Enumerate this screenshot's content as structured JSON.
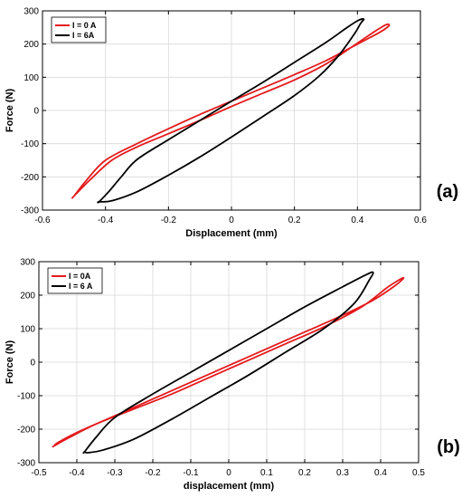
{
  "chart_data": [
    {
      "type": "line",
      "panel_label": "(a)",
      "xlabel": "Displacement (mm)",
      "ylabel": "Force (N)",
      "xlim": [
        -0.6,
        0.6
      ],
      "ylim": [
        -300,
        300
      ],
      "xticks": [
        "-0.6",
        "-0.4",
        "-0.2",
        "0",
        "0.2",
        "0.4",
        "0.6"
      ],
      "yticks": [
        "300",
        "200",
        "100",
        "0",
        "-100",
        "-200",
        "-300"
      ],
      "grid": true,
      "legend_position": "top-left",
      "series": [
        {
          "name": "I = 0 A",
          "color": "#e41a1c",
          "x": [
            -0.5,
            -0.45,
            -0.38,
            -0.3,
            -0.2,
            -0.1,
            0.0,
            0.1,
            0.2,
            0.3,
            0.38,
            0.45,
            0.49,
            0.5,
            0.47,
            0.4,
            0.3,
            0.2,
            0.1,
            0.0,
            -0.1,
            -0.2,
            -0.3,
            -0.4,
            -0.46,
            -0.5
          ],
          "y": [
            -258,
            -210,
            -150,
            -110,
            -70,
            -30,
            12,
            52,
            92,
            140,
            190,
            235,
            258,
            255,
            235,
            200,
            150,
            108,
            68,
            28,
            -12,
            -55,
            -100,
            -150,
            -210,
            -258
          ]
        },
        {
          "name": "I = 6A",
          "color": "#000000",
          "x": [
            -0.42,
            -0.39,
            -0.35,
            -0.3,
            -0.2,
            -0.1,
            0.0,
            0.1,
            0.2,
            0.3,
            0.36,
            0.4,
            0.42,
            0.41,
            0.39,
            0.34,
            0.28,
            0.2,
            0.1,
            0.0,
            -0.1,
            -0.2,
            -0.3,
            -0.38,
            -0.42
          ],
          "y": [
            -275,
            -245,
            -200,
            -148,
            -88,
            -30,
            28,
            85,
            145,
            205,
            245,
            270,
            275,
            262,
            230,
            165,
            105,
            45,
            -18,
            -80,
            -140,
            -195,
            -245,
            -272,
            -275
          ]
        }
      ]
    },
    {
      "type": "line",
      "panel_label": "(b)",
      "xlabel": "displacement (mm)",
      "ylabel": "Force (N)",
      "xlim": [
        -0.5,
        0.5
      ],
      "ylim": [
        -300,
        300
      ],
      "xticks": [
        "-0.5",
        "-0.4",
        "-0.3",
        "-0.2",
        "-0.1",
        "0",
        "0.1",
        "0.2",
        "0.3",
        "0.4",
        "0.5"
      ],
      "yticks": [
        "300",
        "200",
        "100",
        "0",
        "-100",
        "-200",
        "-300"
      ],
      "grid": true,
      "legend_position": "top-left",
      "series": [
        {
          "name": "I = 0A",
          "color": "#e41a1c",
          "x": [
            -0.46,
            -0.42,
            -0.35,
            -0.25,
            -0.15,
            -0.05,
            0.05,
            0.15,
            0.25,
            0.35,
            0.42,
            0.46,
            0.44,
            0.38,
            0.3,
            0.2,
            0.1,
            0.0,
            -0.1,
            -0.2,
            -0.3,
            -0.4,
            -0.45,
            -0.46
          ],
          "y": [
            -250,
            -225,
            -185,
            -140,
            -95,
            -45,
            5,
            55,
            105,
            165,
            225,
            252,
            230,
            185,
            140,
            90,
            40,
            -10,
            -60,
            -110,
            -160,
            -210,
            -240,
            -250
          ]
        },
        {
          "name": "I = 6 A",
          "color": "#000000",
          "x": [
            -0.38,
            -0.35,
            -0.3,
            -0.2,
            -0.1,
            0.0,
            0.1,
            0.2,
            0.3,
            0.36,
            0.38,
            0.37,
            0.33,
            0.25,
            0.15,
            0.05,
            -0.05,
            -0.15,
            -0.25,
            -0.33,
            -0.37,
            -0.38
          ],
          "y": [
            -268,
            -225,
            -165,
            -95,
            -30,
            35,
            100,
            165,
            225,
            260,
            268,
            245,
            175,
            100,
            30,
            -40,
            -105,
            -170,
            -230,
            -262,
            -270,
            -268
          ]
        }
      ]
    }
  ]
}
